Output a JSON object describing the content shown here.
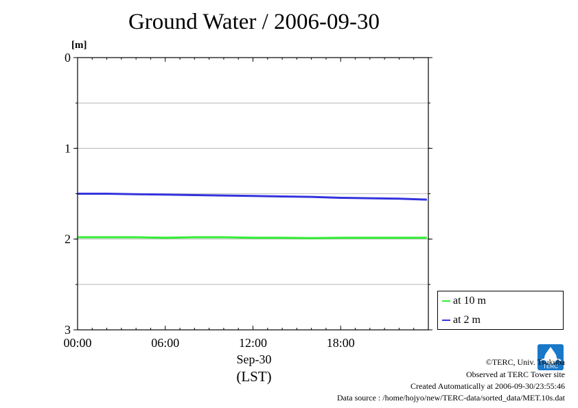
{
  "title": "Ground Water / 2006-09-30",
  "chart_data": {
    "type": "line",
    "title": "Ground Water / 2006-09-30",
    "yunit": "[m]",
    "ylim": [
      0,
      3
    ],
    "y_inverted": true,
    "yticks": [
      "0",
      "1",
      "2",
      "3"
    ],
    "ygrid": [
      0.5,
      1,
      1.5,
      2,
      2.5
    ],
    "xlim_hours": [
      0,
      24
    ],
    "xticks": [
      "00:00",
      "06:00",
      "12:00",
      "18:00"
    ],
    "xticks_hours": [
      0,
      6,
      12,
      18
    ],
    "xlabel_date": "Sep-30",
    "xlabel_zone": "(LST)",
    "grid": true,
    "legend_position": "bottom-right",
    "series": [
      {
        "name": "at 10 m",
        "color": "#33ee33",
        "x_hours": [
          0,
          2,
          4,
          6,
          8,
          10,
          12,
          14,
          16,
          18,
          20,
          22,
          23.9
        ],
        "values": [
          1.98,
          1.98,
          1.98,
          1.985,
          1.98,
          1.98,
          1.985,
          1.985,
          1.99,
          1.985,
          1.985,
          1.985,
          1.985
        ]
      },
      {
        "name": "at 2 m",
        "color": "#3333dd",
        "x_hours": [
          0,
          2,
          4,
          6,
          8,
          10,
          12,
          14,
          16,
          18,
          20,
          22,
          23.9
        ],
        "values": [
          1.5,
          1.5,
          1.505,
          1.51,
          1.515,
          1.52,
          1.525,
          1.53,
          1.535,
          1.545,
          1.55,
          1.555,
          1.565
        ]
      }
    ]
  },
  "footer": {
    "copyright": "©TERC, Univ. Tsukuba",
    "observed": "Observed at TERC Tower site",
    "created": "Created Automatically at 2006-09-30/23:55:46",
    "source": "Data source : /home/hojyo/new/TERC-data/sorted_data/MET.10s.dat"
  },
  "logo": {
    "icon": "terc-logo-icon",
    "text": "TERC",
    "color": "#1a78c8"
  }
}
